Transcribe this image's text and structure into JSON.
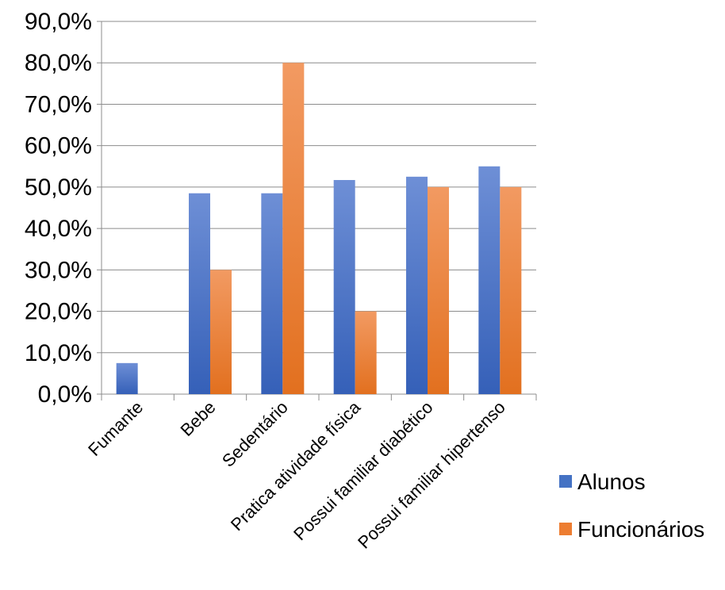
{
  "chart_data": {
    "type": "bar",
    "categories": [
      "Fumante",
      "Bebe",
      "Sedentário",
      "Pratica atividade física",
      "Possui familiar diabético",
      "Possui familiar hipertenso"
    ],
    "series": [
      {
        "name": "Alunos",
        "color": "#4472C4",
        "values": [
          7.5,
          48.5,
          48.5,
          51.7,
          52.5,
          55.0
        ]
      },
      {
        "name": "Funcionários",
        "color": "#ED7D31",
        "values": [
          0,
          30.0,
          80.0,
          20.0,
          50.0,
          50.0
        ]
      }
    ],
    "y_ticks": [
      "0,0%",
      "10,0%",
      "20,0%",
      "30,0%",
      "40,0%",
      "50,0%",
      "60,0%",
      "70,0%",
      "80,0%",
      "90,0%"
    ],
    "ylim": [
      0,
      90
    ],
    "y_unit": "percent",
    "grid": true,
    "legend_position": "right"
  }
}
